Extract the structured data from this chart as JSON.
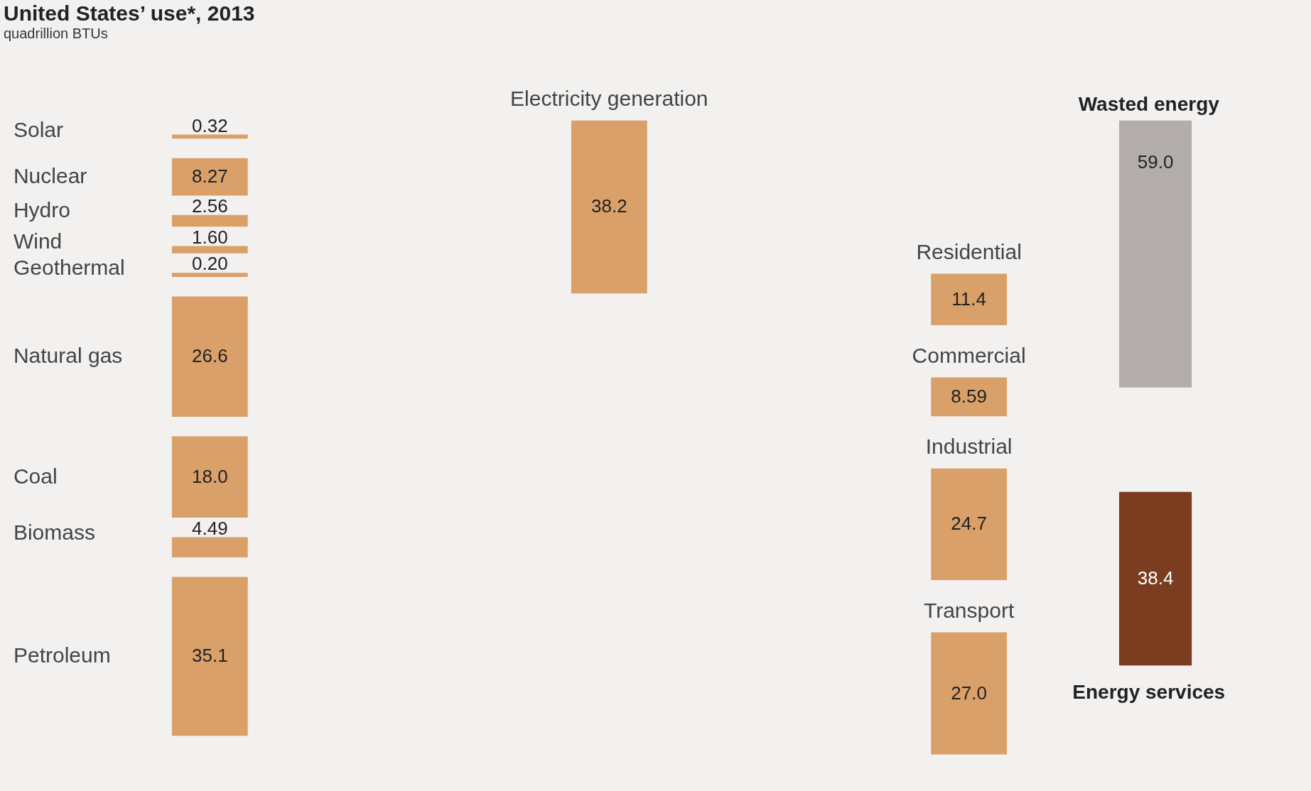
{
  "chart_data": {
    "type": "other",
    "title": "United States’ use*, 2013",
    "subtitle": "quadrillion BTUs",
    "categories": [
      "Solar",
      "Nuclear",
      "Hydro",
      "Wind",
      "Geothermal",
      "Natural gas",
      "Coal",
      "Biomass",
      "Petroleum",
      "Electricity generation",
      "Residential",
      "Commercial",
      "Industrial",
      "Transport",
      "Wasted energy",
      "Energy services"
    ],
    "values": [
      0.32,
      8.27,
      2.56,
      1.6,
      0.2,
      26.6,
      18.0,
      4.49,
      35.1,
      38.2,
      11.4,
      8.59,
      24.7,
      27.0,
      59.0,
      38.4
    ],
    "value_labels": [
      "0.32",
      "8.27",
      "2.56",
      "1.60",
      "0.20",
      "26.6",
      "18.0",
      "4.49",
      "35.1",
      "38.2",
      "11.4",
      "8.59",
      "24.7",
      "27.0",
      "59.0",
      "38.4"
    ],
    "colors": [
      "#d9a06a",
      "#d9a06a",
      "#d9a06a",
      "#d9a06a",
      "#d9a06a",
      "#d9a06a",
      "#d9a06a",
      "#d9a06a",
      "#d9a06a",
      "#d9a06a",
      "#d9a06a",
      "#d9a06a",
      "#d9a06a",
      "#d9a06a",
      "#b3adab",
      "#7b3d1f"
    ]
  }
}
